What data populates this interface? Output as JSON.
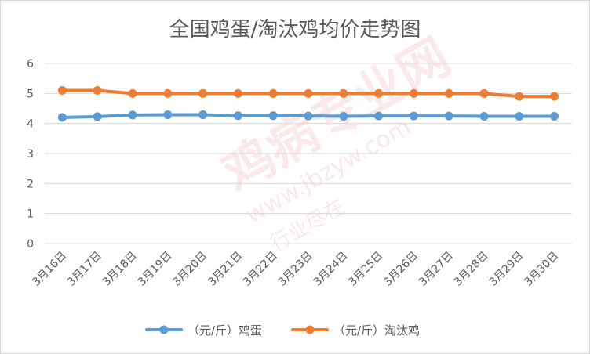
{
  "watermark": {
    "brand": "鸡病专业网",
    "url": "www.jbzyw.com",
    "slogan": "行业尽在"
  },
  "chart_data": {
    "type": "line",
    "title": "全国鸡蛋/淘汰鸡均价走势图",
    "categories": [
      "3月16日",
      "3月17日",
      "3月18日",
      "3月19日",
      "3月20日",
      "3月21日",
      "3月22日",
      "3月23日",
      "3月24日",
      "3月25日",
      "3月26日",
      "3月27日",
      "3月28日",
      "3月29日",
      "3月30日"
    ],
    "ylim": [
      0,
      6
    ],
    "yticks": [
      0,
      1,
      2,
      3,
      4,
      5,
      6
    ],
    "grid": true,
    "legend_position": "bottom",
    "series": [
      {
        "name": "（元/斤）鸡蛋",
        "color": "#5b9bd5",
        "values": [
          4.2,
          4.23,
          4.28,
          4.29,
          4.29,
          4.26,
          4.26,
          4.25,
          4.24,
          4.25,
          4.25,
          4.25,
          4.24,
          4.24,
          4.24
        ]
      },
      {
        "name": "（元/斤）淘汰鸡",
        "color": "#ed7d31",
        "values": [
          5.1,
          5.1,
          5.0,
          5.0,
          5.0,
          5.0,
          5.0,
          5.0,
          5.0,
          5.0,
          5.0,
          5.0,
          5.0,
          4.9,
          4.9
        ]
      }
    ]
  }
}
